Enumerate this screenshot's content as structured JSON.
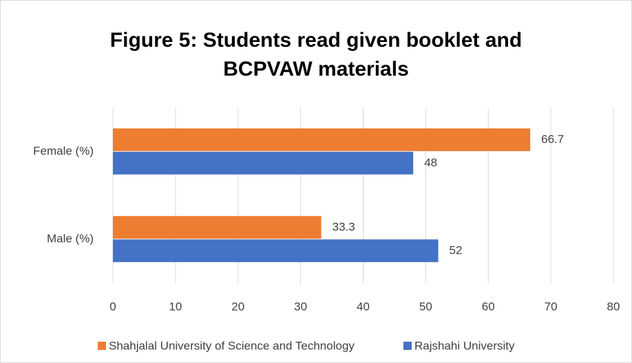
{
  "chart_data": {
    "type": "hbar",
    "title": "Figure 5: Students read given booklet and BCPVAW materials",
    "categories": [
      "Female (%)",
      "Male (%)"
    ],
    "series": [
      {
        "name": "Shahjalal University of Science and Technology",
        "color": "#ed7d31",
        "values": [
          66.7,
          33.3
        ]
      },
      {
        "name": "Rajshahi University",
        "color": "#4472c4",
        "values": [
          48,
          52
        ]
      }
    ],
    "xlim": [
      0,
      80
    ],
    "xticks": [
      0,
      10,
      20,
      30,
      40,
      50,
      60,
      70,
      80
    ],
    "grid": true,
    "legend": "bottom"
  }
}
